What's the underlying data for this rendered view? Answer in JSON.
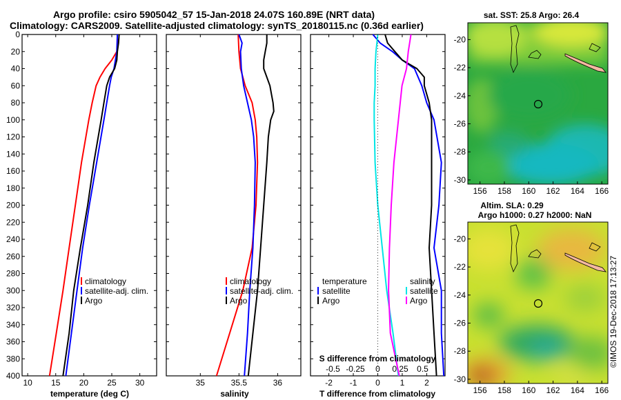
{
  "title_line1": "Argo profile: csiro 5905042_57 15-Jan-2018 24.07S 160.89E (NRT data)",
  "title_line2": "Climatology: CARS2009. Satellite-adjusted climatology: synTS_20180115.nc (0.36d earlier)",
  "watermark": "©IMOS 19-Dec-2018 17:13:27",
  "colors": {
    "climatology": "#ff0000",
    "satellite": "#0000ff",
    "argo": "#000000",
    "s_diff": "#ff00ff",
    "t_diff": "#00e5e5"
  },
  "chart_data": [
    {
      "id": "temperature",
      "type": "line",
      "xlabel": "temperature (deg C)",
      "ylabel": "",
      "xlim": [
        9,
        33
      ],
      "ylim": [
        0,
        400
      ],
      "xticks": [
        "10",
        "15",
        "20",
        "25",
        "30"
      ],
      "xtick_values": [
        10,
        15,
        20,
        25,
        30
      ],
      "yticks": [
        "0",
        "20",
        "40",
        "60",
        "80",
        "100",
        "120",
        "140",
        "160",
        "180",
        "200",
        "220",
        "240",
        "260",
        "280",
        "300",
        "320",
        "340",
        "360",
        "380",
        "400"
      ],
      "legend": [
        "climatology",
        "satellite-adj. clim.",
        "Argo"
      ],
      "series": [
        {
          "name": "climatology",
          "color": "#ff0000",
          "depth": [
            5,
            20,
            30,
            40,
            50,
            60,
            80,
            100,
            150,
            200,
            250,
            300,
            350,
            400
          ],
          "values": [
            26.2,
            25.9,
            25.0,
            23.8,
            22.9,
            22.2,
            21.5,
            20.9,
            19.6,
            18.5,
            17.4,
            16.3,
            15.1,
            13.9
          ]
        },
        {
          "name": "satellite-adj. clim.",
          "color": "#0000ff",
          "depth": [
            0,
            20,
            40,
            50,
            60,
            80,
            100,
            150,
            200,
            250,
            300,
            350,
            400
          ],
          "values": [
            26.0,
            25.9,
            25.4,
            24.9,
            24.6,
            24.1,
            23.6,
            22.3,
            21.0,
            19.8,
            18.8,
            17.8,
            16.8
          ]
        },
        {
          "name": "Argo",
          "color": "#000000",
          "depth": [
            0,
            10,
            20,
            30,
            40,
            50,
            60,
            80,
            100,
            150,
            200,
            250,
            300,
            350,
            400
          ],
          "values": [
            26.3,
            26.2,
            26.0,
            25.9,
            25.5,
            24.6,
            24.1,
            23.6,
            23.1,
            21.8,
            20.7,
            19.4,
            18.2,
            17.4,
            16.3
          ]
        }
      ]
    },
    {
      "id": "salinity",
      "type": "line",
      "xlabel": "salinity",
      "ylabel": "",
      "xlim": [
        34.56,
        36.3
      ],
      "ylim": [
        0,
        400
      ],
      "xticks": [
        "35",
        "35.5",
        "36"
      ],
      "xtick_values": [
        35,
        35.5,
        36
      ],
      "legend": [
        "climatology",
        "satellite-adj. clim.",
        "Argo"
      ],
      "series": [
        {
          "name": "climatology",
          "color": "#ff0000",
          "depth": [
            0,
            20,
            40,
            60,
            80,
            100,
            120,
            150,
            200,
            250,
            300,
            350,
            400
          ],
          "values": [
            35.49,
            35.5,
            35.52,
            35.58,
            35.67,
            35.71,
            35.73,
            35.74,
            35.72,
            35.67,
            35.55,
            35.38,
            35.21
          ]
        },
        {
          "name": "satellite-adj. clim.",
          "color": "#0000ff",
          "depth": [
            0,
            10,
            20,
            40,
            60,
            80,
            100,
            120,
            150,
            200,
            250,
            300,
            350,
            400
          ],
          "values": [
            35.5,
            35.54,
            35.52,
            35.53,
            35.56,
            35.61,
            35.66,
            35.69,
            35.71,
            35.7,
            35.68,
            35.64,
            35.61,
            35.57
          ]
        },
        {
          "name": "Argo",
          "color": "#000000",
          "depth": [
            0,
            10,
            20,
            30,
            40,
            50,
            60,
            70,
            80,
            90,
            100,
            120,
            150,
            200,
            250,
            300,
            350,
            400
          ],
          "values": [
            35.86,
            35.86,
            35.84,
            35.82,
            35.82,
            35.86,
            35.9,
            35.92,
            35.94,
            35.95,
            35.91,
            35.88,
            35.86,
            35.82,
            35.78,
            35.74,
            35.68,
            35.62
          ]
        }
      ]
    },
    {
      "id": "difference",
      "type": "line",
      "xlabel": "T difference from climatology",
      "top_label": "S difference from climatology",
      "xlim": [
        -2.75,
        2.75
      ],
      "ylim": [
        0,
        400
      ],
      "xticks": [
        "-2",
        "-1",
        "0",
        "1",
        "2"
      ],
      "xtick_values": [
        -2,
        -1,
        0,
        1,
        2
      ],
      "sticks": [
        "-0.5",
        "-0.25",
        "0",
        "0.25",
        "0.5"
      ],
      "stick_values": [
        -0.5,
        -0.25,
        0,
        0.25,
        0.5
      ],
      "legend_left_title": "temperature",
      "legend_right_title": "salinity",
      "legend_left": [
        "satellite",
        "Argo"
      ],
      "legend_right": [
        "satellite",
        "Argo"
      ],
      "series": [
        {
          "name": "T satellite",
          "color": "#0000ff",
          "axis": "T",
          "depth": [
            0,
            10,
            20,
            30,
            40,
            60,
            80,
            100,
            150,
            200,
            250,
            300,
            350,
            400
          ],
          "values": [
            -0.2,
            0.1,
            0.6,
            1.0,
            1.5,
            1.8,
            2.0,
            2.3,
            2.6,
            2.5,
            2.3,
            2.6,
            2.6,
            2.7
          ]
        },
        {
          "name": "T Argo",
          "color": "#000000",
          "axis": "T",
          "depth": [
            0,
            10,
            20,
            30,
            40,
            50,
            60,
            80,
            100,
            150,
            200,
            250,
            300,
            350,
            400
          ],
          "values": [
            0.3,
            0.4,
            0.7,
            1.0,
            1.6,
            1.9,
            1.9,
            2.1,
            2.2,
            2.2,
            2.2,
            2.1,
            2.2,
            2.3,
            2.4
          ]
        },
        {
          "name": "S satellite",
          "color": "#00e5e5",
          "axis": "S",
          "depth": [
            0,
            20,
            40,
            60,
            80,
            100,
            150,
            200,
            250,
            300,
            350,
            400
          ],
          "values": [
            0.0,
            -0.02,
            -0.03,
            -0.03,
            -0.04,
            -0.04,
            -0.03,
            0.0,
            0.05,
            0.1,
            0.17,
            0.23
          ]
        },
        {
          "name": "S Argo",
          "color": "#ff00ff",
          "axis": "S",
          "depth": [
            0,
            20,
            40,
            60,
            80,
            100,
            150,
            200,
            250,
            300,
            350,
            400
          ],
          "values": [
            0.37,
            0.34,
            0.32,
            0.27,
            0.25,
            0.23,
            0.18,
            0.15,
            0.13,
            0.12,
            0.14,
            0.24
          ]
        }
      ]
    },
    {
      "id": "sst_map",
      "type": "heatmap",
      "title": "sat. SST: 25.8 Argo: 26.4",
      "xticks": [
        "156",
        "158",
        "160",
        "162",
        "164",
        "166"
      ],
      "yticks": [
        "-20",
        "-22",
        "-24",
        "-26",
        "-28",
        "-30"
      ],
      "xlim": [
        155,
        166.5
      ],
      "ylim": [
        -30.3,
        -18.8
      ],
      "marker": {
        "lon": 160.89,
        "lat": -24.07
      }
    },
    {
      "id": "sla_map",
      "type": "heatmap",
      "title_line1": "Altim. SLA: 0.29",
      "title_line2": "Argo h1000: 0.27 h2000: NaN",
      "xticks": [
        "156",
        "158",
        "160",
        "162",
        "164",
        "166"
      ],
      "yticks": [
        "-20",
        "-22",
        "-24",
        "-26",
        "-28",
        "-30"
      ],
      "xlim": [
        155,
        166.5
      ],
      "ylim": [
        -30.3,
        -18.8
      ],
      "marker": {
        "lon": 160.89,
        "lat": -24.07
      }
    }
  ]
}
